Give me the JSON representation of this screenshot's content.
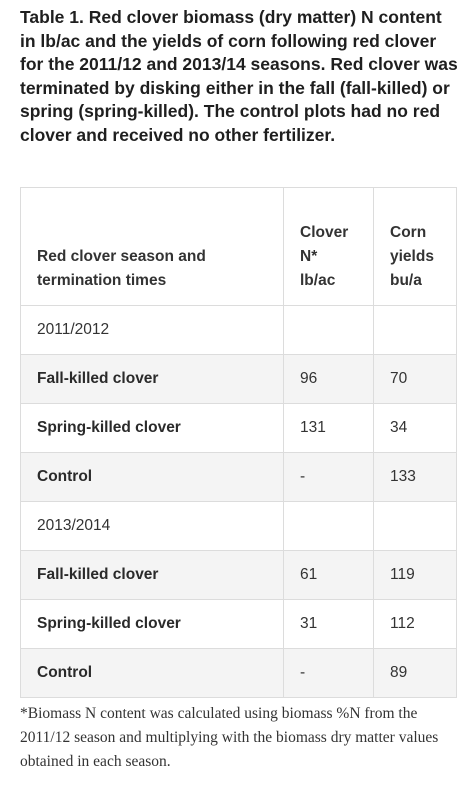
{
  "title": "Table 1. Red clover biomass (dry matter) N content in lb/ac and the yields of corn following red clover for the 2011/12 and 2013/14 seasons. Red clover was terminated by disking either in the fall (fall-killed) or spring (spring-killed). The control plots had no red clover and received no other fertilizer.",
  "table": {
    "header": [
      [
        "Red clover season and",
        "termination times"
      ],
      [
        "Clover",
        "N*",
        "lb/ac"
      ],
      [
        "Corn",
        "yields",
        "bu/a"
      ]
    ],
    "rows": [
      [
        "2011/2012"
      ],
      [
        "Fall-killed clover",
        96,
        70
      ],
      [
        "Spring-killed clover",
        131,
        34
      ],
      [
        "Control",
        "-",
        133
      ],
      [
        "2013/2014"
      ],
      [
        "Fall-killed clover",
        61,
        119
      ],
      [
        "Spring-killed clover",
        31,
        112
      ],
      [
        "Control",
        "-",
        89
      ]
    ]
  },
  "footnote": "*Biomass N content was calculated using biomass %N from the 2011/12 season and multiplying with the biomass dry matter values obtained in each season."
}
